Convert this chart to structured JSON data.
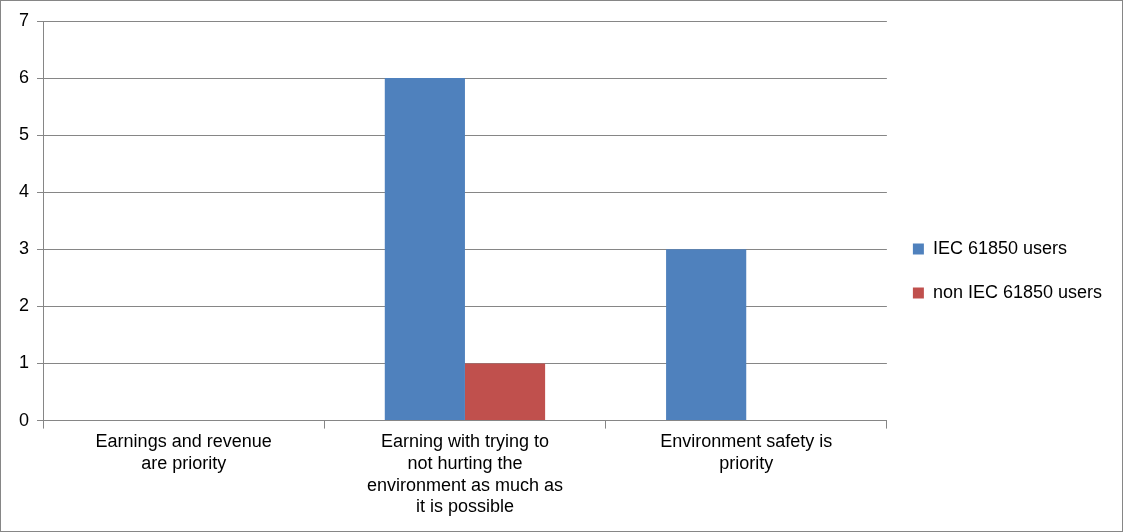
{
  "chart_data": {
    "type": "bar",
    "categories": [
      "Earnings and revenue are priority",
      "Earning with trying to not hurting the environment as much as it is possible",
      "Environment safety is priority"
    ],
    "series": [
      {
        "name": "IEC 61850 users",
        "color": "#4f81bd",
        "values": [
          0,
          6,
          3
        ]
      },
      {
        "name": "non IEC 61850 users",
        "color": "#c0504d",
        "values": [
          0,
          1,
          0
        ]
      }
    ],
    "ylim": [
      0,
      7
    ],
    "yticks": [
      0,
      1,
      2,
      3,
      4,
      5,
      6,
      7
    ],
    "grid": "y",
    "legend": "right"
  }
}
